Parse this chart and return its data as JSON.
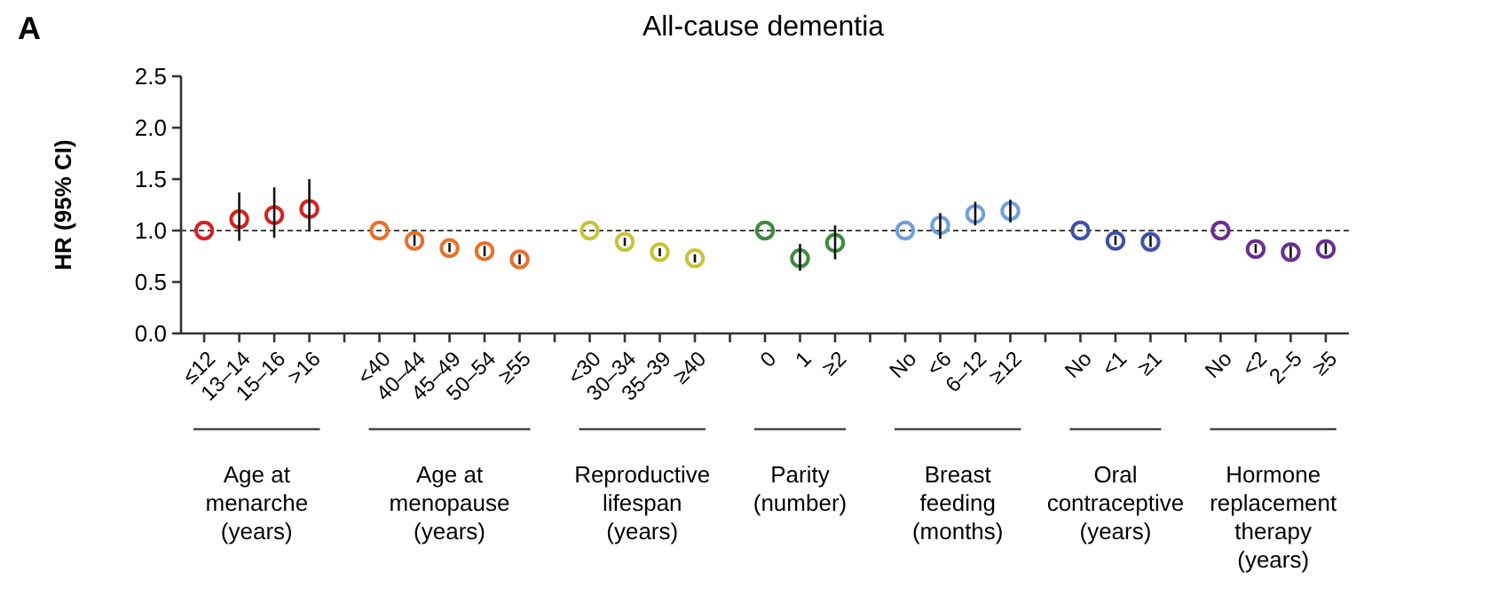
{
  "chart_data": {
    "type": "scatter",
    "title": "All-cause dementia",
    "ylabel": "HR (95% CI)",
    "categories": [
      "≤12",
      "13–14",
      "15–16",
      ">16",
      null,
      "<40",
      "40–44",
      "45–49",
      "50–54",
      "≥55",
      null,
      "<30",
      "30–34",
      "35–39",
      "≥40",
      null,
      "0",
      "1",
      "≥2",
      null,
      "No",
      "<6",
      "6–12",
      "≥12",
      null,
      "No",
      "<1",
      "≥1",
      null,
      "No",
      "<2",
      "2–5",
      "≥5"
    ],
    "values": [
      1.0,
      1.11,
      1.15,
      1.21,
      null,
      1.0,
      0.9,
      0.83,
      0.8,
      0.72,
      null,
      1.0,
      0.89,
      0.79,
      0.73,
      null,
      1.0,
      0.73,
      0.88,
      null,
      1.0,
      1.05,
      1.16,
      1.19,
      null,
      1.0,
      0.9,
      0.89,
      null,
      1.0,
      0.82,
      0.79,
      0.82
    ],
    "errors": [
      null,
      [
        0.9,
        1.37
      ],
      [
        0.93,
        1.42
      ],
      [
        0.99,
        1.5
      ],
      null,
      null,
      [
        0.85,
        0.96
      ],
      [
        0.79,
        0.88
      ],
      [
        0.75,
        0.85
      ],
      [
        0.67,
        0.77
      ],
      null,
      null,
      [
        0.85,
        0.93
      ],
      [
        0.75,
        0.83
      ],
      [
        0.69,
        0.77
      ],
      null,
      null,
      [
        0.61,
        0.87
      ],
      [
        0.72,
        1.05
      ],
      null,
      null,
      [
        0.92,
        1.17
      ],
      [
        1.05,
        1.28
      ],
      [
        1.08,
        1.3
      ],
      null,
      null,
      [
        0.86,
        0.95
      ],
      [
        0.84,
        0.95
      ],
      null,
      null,
      [
        0.78,
        0.87
      ],
      [
        0.73,
        0.85
      ],
      [
        0.77,
        0.88
      ]
    ],
    "colors": [
      "#d62020",
      "#d62020",
      "#d62020",
      "#d62020",
      null,
      "#e8702a",
      "#e8702a",
      "#e8702a",
      "#e8702a",
      "#e8702a",
      null,
      "#c8c43a",
      "#c8c43a",
      "#c8c43a",
      "#c8c43a",
      null,
      "#3d8a3d",
      "#3d8a3d",
      "#3d8a3d",
      null,
      "#6f9fdc",
      "#6f9fdc",
      "#6f9fdc",
      "#6f9fdc",
      null,
      "#3f51a8",
      "#3f51a8",
      "#3f51a8",
      null,
      "#6a2d91",
      "#6a2d91",
      "#6a2d91",
      "#6a2d91"
    ],
    "ylim": [
      0,
      2.5
    ],
    "yticks": [
      {
        "value": 0,
        "label": "0.0"
      },
      0.5,
      {
        "value": 1,
        "label": "1.0"
      },
      1.5,
      {
        "value": 2,
        "label": "2.0"
      },
      2.5
    ],
    "ref_lines": [
      {
        "axis": "y",
        "value": 1,
        "line_style": "dashed"
      }
    ],
    "marker": "circle",
    "annotations": [
      "A",
      "Age at\nmenarche\n(years)",
      "Age at\nmenopause\n(years)",
      "Reproductive\nlifespan\n(years)",
      "Parity\n(number)",
      "Breast\nfeeding\n(months)",
      "Oral\ncontraceptive\n(years)",
      "Hormone\nreplacement\ntherapy\n(years)"
    ]
  }
}
